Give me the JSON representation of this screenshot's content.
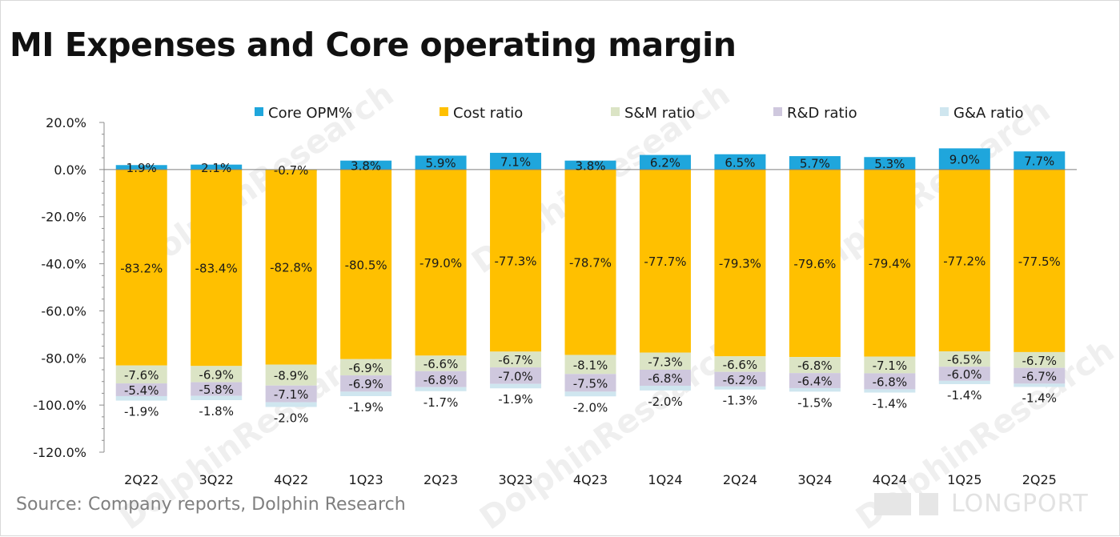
{
  "title": "MI Expenses and Core operating margin",
  "source": "Source: Company reports, Dolphin Research",
  "brand": {
    "logo_text": "LONGPORT",
    "watermark": "DolphinResearch"
  },
  "colors": {
    "core_opm": "#1fa6dc",
    "cost": "#ffc000",
    "sm": "#dbe4c5",
    "rd": "#cfc8de",
    "ga": "#cfe6ef",
    "axis": "#8c8c8c"
  },
  "chart_data": {
    "type": "bar",
    "stacked": true,
    "categories": [
      "2Q22",
      "3Q22",
      "4Q22",
      "1Q23",
      "2Q23",
      "3Q23",
      "4Q23",
      "1Q24",
      "2Q24",
      "3Q24",
      "4Q24",
      "1Q25",
      "2Q25"
    ],
    "ylim": [
      -120,
      20
    ],
    "yticks": [
      "20.0%",
      "0.0%",
      "-20.0%",
      "-40.0%",
      "-60.0%",
      "-80.0%",
      "-100.0%",
      "-120.0%"
    ],
    "ytick_values": [
      20,
      0,
      -20,
      -40,
      -60,
      -80,
      -100,
      -120
    ],
    "legend_position": "top",
    "series": [
      {
        "name": "Core OPM%",
        "color_key": "core_opm",
        "values": [
          1.9,
          2.1,
          -0.7,
          3.8,
          5.9,
          7.1,
          3.8,
          6.2,
          6.5,
          5.7,
          5.3,
          9.0,
          7.7
        ],
        "labels": [
          "1.9%",
          "2.1%",
          "-0.7%",
          "3.8%",
          "5.9%",
          "7.1%",
          "3.8%",
          "6.2%",
          "6.5%",
          "5.7%",
          "5.3%",
          "9.0%",
          "7.7%"
        ]
      },
      {
        "name": "Cost ratio",
        "color_key": "cost",
        "values": [
          -83.2,
          -83.4,
          -82.8,
          -80.5,
          -79.0,
          -77.3,
          -78.7,
          -77.7,
          -79.3,
          -79.6,
          -79.4,
          -77.2,
          -77.5
        ],
        "labels": [
          "-83.2%",
          "-83.4%",
          "-82.8%",
          "-80.5%",
          "-79.0%",
          "-77.3%",
          "-78.7%",
          "-77.7%",
          "-79.3%",
          "-79.6%",
          "-79.4%",
          "-77.2%",
          "-77.5%"
        ]
      },
      {
        "name": "S&M ratio",
        "color_key": "sm",
        "values": [
          -7.6,
          -6.9,
          -8.9,
          -6.9,
          -6.6,
          -6.7,
          -8.1,
          -7.3,
          -6.6,
          -6.8,
          -7.1,
          -6.5,
          -6.7
        ],
        "labels": [
          "-7.6%",
          "-6.9%",
          "-8.9%",
          "-6.9%",
          "-6.6%",
          "-6.7%",
          "-8.1%",
          "-7.3%",
          "-6.6%",
          "-6.8%",
          "-7.1%",
          "-6.5%",
          "-6.7%"
        ]
      },
      {
        "name": "R&D ratio",
        "color_key": "rd",
        "values": [
          -5.4,
          -5.8,
          -7.1,
          -6.9,
          -6.8,
          -7.0,
          -7.5,
          -6.8,
          -6.2,
          -6.4,
          -6.8,
          -6.0,
          -6.7
        ],
        "labels": [
          "-5.4%",
          "-5.8%",
          "-7.1%",
          "-6.9%",
          "-6.8%",
          "-7.0%",
          "-7.5%",
          "-6.8%",
          "-6.2%",
          "-6.4%",
          "-6.8%",
          "-6.0%",
          "-6.7%"
        ]
      },
      {
        "name": "G&A ratio",
        "color_key": "ga",
        "values": [
          -1.9,
          -1.8,
          -2.0,
          -1.9,
          -1.7,
          -1.9,
          -2.0,
          -2.0,
          -1.3,
          -1.5,
          -1.4,
          -1.4,
          -1.4
        ],
        "labels": [
          "-1.9%",
          "-1.8%",
          "-2.0%",
          "-1.9%",
          "-1.7%",
          "-1.9%",
          "-2.0%",
          "-2.0%",
          "-1.3%",
          "-1.5%",
          "-1.4%",
          "-1.4%",
          "-1.4%"
        ]
      }
    ]
  }
}
